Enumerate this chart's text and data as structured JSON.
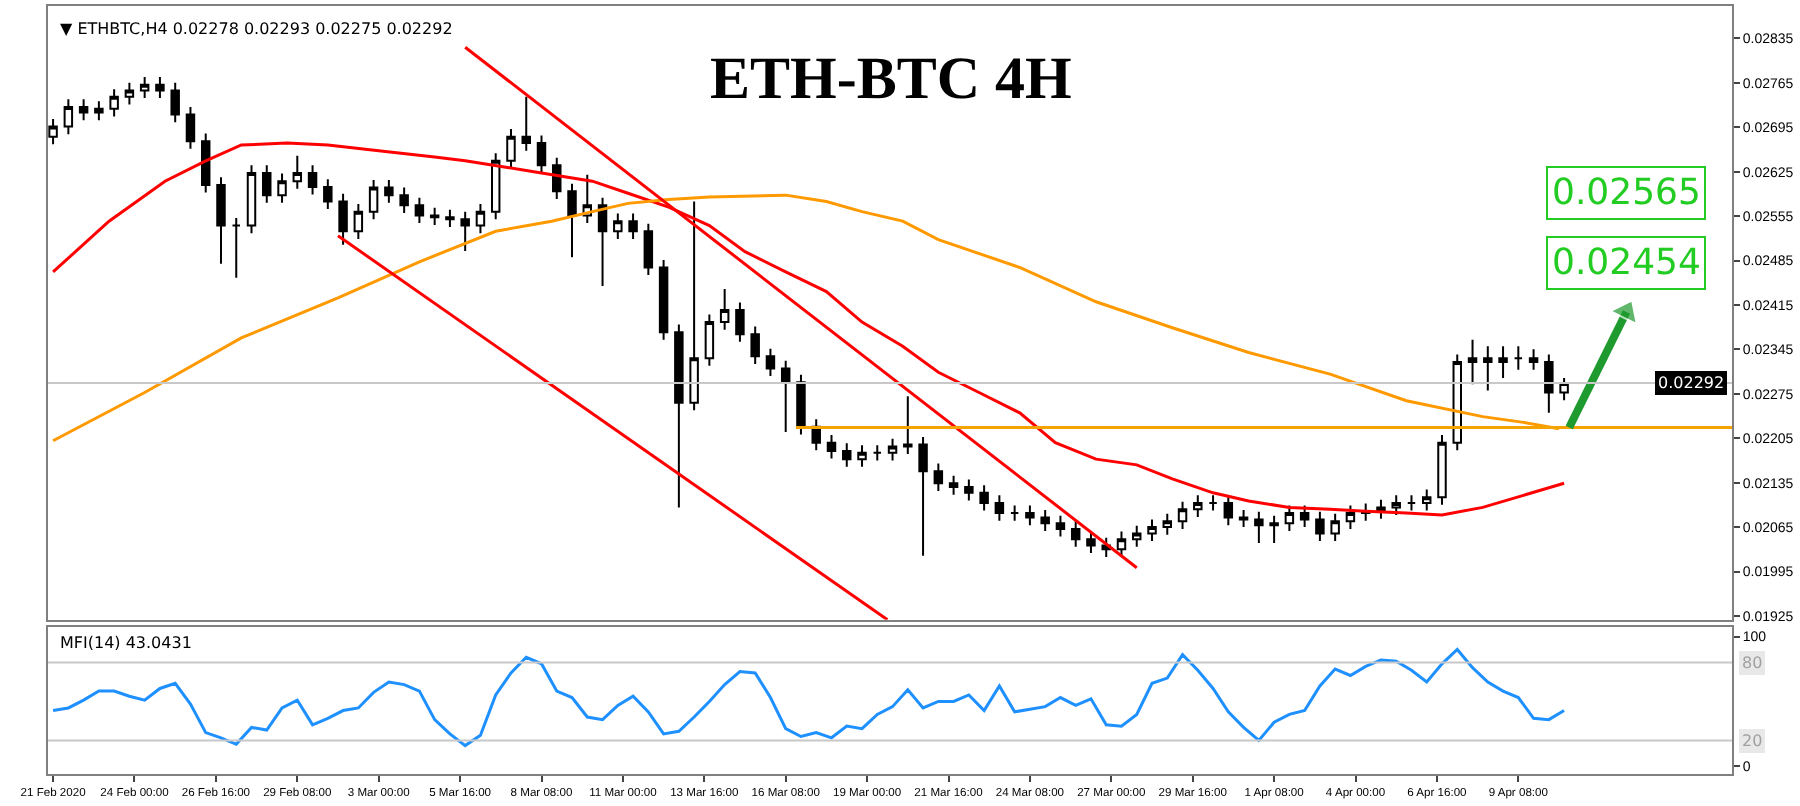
{
  "chart_data": [
    {
      "type": "candlestick",
      "title": "ETH-BTC 4H",
      "color": "#000000",
      "annotations": [
        "▼ ETHBTC,H4 0.02278 0.02293 0.02275 0.02292",
        "0.02565",
        "0.02454"
      ],
      "x": [
        "2020-02-21T08:00",
        "2020-02-21T20:00",
        "2020-02-22T08:00",
        "2020-02-22T20:00",
        "2020-02-23T08:00",
        "2020-02-23T20:00",
        "2020-02-24T08:00",
        "2020-02-24T20:00",
        "2020-02-25T08:00",
        "2020-02-25T20:00",
        "2020-02-26T08:00",
        "2020-02-26T20:00",
        "2020-02-27T08:00",
        "2020-02-27T20:00",
        "2020-02-28T08:00",
        "2020-02-28T20:00",
        "2020-02-29T08:00",
        "2020-02-29T20:00",
        "2020-03-01T08:00",
        "2020-03-01T20:00",
        "2020-03-02T08:00",
        "2020-03-02T20:00",
        "2020-03-03T08:00",
        "2020-03-03T20:00",
        "2020-03-04T08:00",
        "2020-03-04T20:00",
        "2020-03-05T08:00",
        "2020-03-05T20:00",
        "2020-03-06T08:00",
        "2020-03-06T20:00",
        "2020-03-07T08:00",
        "2020-03-07T20:00",
        "2020-03-08T08:00",
        "2020-03-08T20:00",
        "2020-03-09T08:00",
        "2020-03-09T20:00",
        "2020-03-10T08:00",
        "2020-03-10T20:00",
        "2020-03-11T08:00",
        "2020-03-11T20:00",
        "2020-03-12T08:00",
        "2020-03-12T20:00",
        "2020-03-13T08:00",
        "2020-03-13T20:00",
        "2020-03-14T08:00",
        "2020-03-14T20:00",
        "2020-03-15T08:00",
        "2020-03-15T20:00",
        "2020-03-16T08:00",
        "2020-03-16T20:00",
        "2020-03-17T08:00",
        "2020-03-17T20:00",
        "2020-03-18T08:00",
        "2020-03-18T20:00",
        "2020-03-19T08:00",
        "2020-03-19T20:00",
        "2020-03-20T08:00",
        "2020-03-20T20:00",
        "2020-03-21T08:00",
        "2020-03-21T20:00",
        "2020-03-22T08:00",
        "2020-03-22T20:00",
        "2020-03-23T08:00",
        "2020-03-23T20:00",
        "2020-03-24T08:00",
        "2020-03-24T20:00",
        "2020-03-25T08:00",
        "2020-03-25T20:00",
        "2020-03-26T08:00",
        "2020-03-26T20:00",
        "2020-03-27T08:00",
        "2020-03-27T20:00",
        "2020-03-28T08:00",
        "2020-03-28T20:00",
        "2020-03-29T08:00",
        "2020-03-29T20:00",
        "2020-03-30T08:00",
        "2020-03-30T20:00",
        "2020-03-31T08:00",
        "2020-03-31T20:00",
        "2020-04-01T08:00",
        "2020-04-01T20:00",
        "2020-04-02T08:00",
        "2020-04-02T20:00",
        "2020-04-03T08:00",
        "2020-04-03T20:00",
        "2020-04-04T08:00",
        "2020-04-04T20:00",
        "2020-04-05T08:00",
        "2020-04-05T20:00",
        "2020-04-06T08:00",
        "2020-04-06T20:00",
        "2020-04-07T08:00",
        "2020-04-07T20:00",
        "2020-04-08T08:00",
        "2020-04-08T20:00",
        "2020-04-09T08:00",
        "2020-04-09T20:00",
        "2020-04-10T08:00",
        "2020-04-10T20:00"
      ],
      "ohlc": [
        [
          0.0268,
          0.02708,
          0.02668,
          0.02696
        ],
        [
          0.02696,
          0.02739,
          0.02684,
          0.02727
        ],
        [
          0.02727,
          0.02739,
          0.02706,
          0.02718
        ],
        [
          0.02718,
          0.02736,
          0.02706,
          0.02724
        ],
        [
          0.02724,
          0.02755,
          0.02712,
          0.02743
        ],
        [
          0.02743,
          0.02765,
          0.02731,
          0.02753
        ],
        [
          0.02753,
          0.02774,
          0.02741,
          0.02762
        ],
        [
          0.02762,
          0.02774,
          0.02741,
          0.02753
        ],
        [
          0.02753,
          0.02765,
          0.02703,
          0.02715
        ],
        [
          0.02715,
          0.02727,
          0.02661,
          0.02673
        ],
        [
          0.02673,
          0.02685,
          0.02592,
          0.02604
        ],
        [
          0.02604,
          0.02616,
          0.0248,
          0.0254
        ],
        [
          0.0254,
          0.02552,
          0.02458,
          0.0254
        ],
        [
          0.0254,
          0.02635,
          0.02528,
          0.02623
        ],
        [
          0.02623,
          0.02635,
          0.02576,
          0.02588
        ],
        [
          0.02588,
          0.02622,
          0.02576,
          0.0261
        ],
        [
          0.0261,
          0.0265,
          0.02598,
          0.02623
        ],
        [
          0.02623,
          0.02635,
          0.02589,
          0.02601
        ],
        [
          0.02601,
          0.02613,
          0.02566,
          0.02578
        ],
        [
          0.02578,
          0.0259,
          0.0251,
          0.02531
        ],
        [
          0.02531,
          0.02574,
          0.02519,
          0.02562
        ],
        [
          0.02562,
          0.02612,
          0.0255,
          0.026
        ],
        [
          0.026,
          0.02612,
          0.02576,
          0.02588
        ],
        [
          0.02588,
          0.026,
          0.0256,
          0.02572
        ],
        [
          0.02572,
          0.02584,
          0.02544,
          0.02556
        ],
        [
          0.02556,
          0.02568,
          0.02541,
          0.02553
        ],
        [
          0.02553,
          0.02565,
          0.02538,
          0.0255
        ],
        [
          0.0255,
          0.02562,
          0.025,
          0.0254
        ],
        [
          0.0254,
          0.02574,
          0.02528,
          0.02562
        ],
        [
          0.02562,
          0.02654,
          0.0255,
          0.02642
        ],
        [
          0.02642,
          0.02692,
          0.0263,
          0.0268
        ],
        [
          0.0268,
          0.02743,
          0.02658,
          0.0267
        ],
        [
          0.0267,
          0.02682,
          0.02623,
          0.02635
        ],
        [
          0.02635,
          0.02647,
          0.02582,
          0.02594
        ],
        [
          0.02594,
          0.02606,
          0.0249,
          0.02556
        ],
        [
          0.02556,
          0.0262,
          0.02544,
          0.02572
        ],
        [
          0.02572,
          0.02584,
          0.02445,
          0.02531
        ],
        [
          0.02531,
          0.02559,
          0.02519,
          0.02547
        ],
        [
          0.02547,
          0.02559,
          0.02519,
          0.02531
        ],
        [
          0.02531,
          0.02543,
          0.02462,
          0.02474
        ],
        [
          0.02474,
          0.02486,
          0.0236,
          0.02372
        ],
        [
          0.02372,
          0.02384,
          0.02096,
          0.02261
        ],
        [
          0.02261,
          0.02578,
          0.02249,
          0.02331
        ],
        [
          0.02331,
          0.024,
          0.02319,
          0.02388
        ],
        [
          0.02388,
          0.0244,
          0.02376,
          0.02407
        ],
        [
          0.02407,
          0.02419,
          0.02357,
          0.02369
        ],
        [
          0.02369,
          0.02381,
          0.02322,
          0.02334
        ],
        [
          0.02334,
          0.02346,
          0.02303,
          0.02315
        ],
        [
          0.02315,
          0.02327,
          0.02215,
          0.02293
        ],
        [
          0.02293,
          0.02305,
          0.02211,
          0.02223
        ],
        [
          0.02223,
          0.02235,
          0.02186,
          0.02198
        ],
        [
          0.02198,
          0.0221,
          0.02173,
          0.02185
        ],
        [
          0.02185,
          0.02197,
          0.0216,
          0.02172
        ],
        [
          0.02172,
          0.02194,
          0.0216,
          0.02182
        ],
        [
          0.02182,
          0.02194,
          0.0217,
          0.02182
        ],
        [
          0.02182,
          0.02204,
          0.0217,
          0.02192
        ],
        [
          0.02192,
          0.02271,
          0.0218,
          0.02195
        ],
        [
          0.02195,
          0.02207,
          0.0202,
          0.02153
        ],
        [
          0.02153,
          0.02165,
          0.02122,
          0.02134
        ],
        [
          0.02134,
          0.02146,
          0.02116,
          0.02128
        ],
        [
          0.02128,
          0.0214,
          0.02107,
          0.02119
        ],
        [
          0.02119,
          0.02131,
          0.02091,
          0.02103
        ],
        [
          0.02103,
          0.02115,
          0.02075,
          0.02087
        ],
        [
          0.02087,
          0.02099,
          0.02075,
          0.02087
        ],
        [
          0.02087,
          0.02099,
          0.02068,
          0.0208
        ],
        [
          0.0208,
          0.02092,
          0.02059,
          0.02071
        ],
        [
          0.02071,
          0.02083,
          0.0205,
          0.02062
        ],
        [
          0.02062,
          0.02074,
          0.02034,
          0.02046
        ],
        [
          0.02046,
          0.02058,
          0.02024,
          0.02036
        ],
        [
          0.02036,
          0.02048,
          0.02018,
          0.0203
        ],
        [
          0.0203,
          0.02058,
          0.02018,
          0.02046
        ],
        [
          0.02046,
          0.02067,
          0.02034,
          0.02055
        ],
        [
          0.02055,
          0.02077,
          0.02043,
          0.02065
        ],
        [
          0.02065,
          0.02086,
          0.02053,
          0.02074
        ],
        [
          0.02074,
          0.02105,
          0.02062,
          0.02093
        ],
        [
          0.02093,
          0.02115,
          0.02081,
          0.02103
        ],
        [
          0.02103,
          0.02115,
          0.02091,
          0.02103
        ],
        [
          0.02103,
          0.02115,
          0.02068,
          0.0208
        ],
        [
          0.0208,
          0.02092,
          0.02065,
          0.02077
        ],
        [
          0.02077,
          0.02089,
          0.0204,
          0.02068
        ],
        [
          0.02068,
          0.02083,
          0.0204,
          0.02071
        ],
        [
          0.02071,
          0.02099,
          0.02059,
          0.02087
        ],
        [
          0.02087,
          0.02099,
          0.02065,
          0.02077
        ],
        [
          0.02077,
          0.02089,
          0.02043,
          0.02055
        ],
        [
          0.02055,
          0.02086,
          0.02043,
          0.02074
        ],
        [
          0.02074,
          0.02099,
          0.02062,
          0.02087
        ],
        [
          0.02087,
          0.02102,
          0.02075,
          0.0209
        ],
        [
          0.0209,
          0.02108,
          0.02078,
          0.02096
        ],
        [
          0.02096,
          0.02115,
          0.02084,
          0.02103
        ],
        [
          0.02103,
          0.02115,
          0.02091,
          0.02103
        ],
        [
          0.02103,
          0.02124,
          0.02091,
          0.02112
        ],
        [
          0.02112,
          0.0221,
          0.021,
          0.02198
        ],
        [
          0.02198,
          0.02337,
          0.02186,
          0.02325
        ],
        [
          0.02325,
          0.0236,
          0.0229,
          0.02331
        ],
        [
          0.02331,
          0.0235,
          0.0228,
          0.02325
        ],
        [
          0.02325,
          0.0235,
          0.023,
          0.02331
        ],
        [
          0.02331,
          0.0235,
          0.02313,
          0.02331
        ],
        [
          0.02331,
          0.02345,
          0.02313,
          0.02325
        ],
        [
          0.02325,
          0.02337,
          0.02245,
          0.02277
        ],
        [
          0.02277,
          0.023,
          0.02265,
          0.02292
        ]
      ],
      "series": [
        {
          "type": "line",
          "color": "#ff0000",
          "x": [
            "2020-02-21T08:00",
            "2020-02-23T04:00",
            "2020-02-25T00:00",
            "2020-02-26T08:00",
            "2020-02-27T12:00",
            "2020-02-29T00:00",
            "2020-03-01T08:00",
            "2020-03-03T00:00",
            "2020-03-04T20:00",
            "2020-03-05T20:00",
            "2020-03-07T04:00",
            "2020-03-08T08:00",
            "2020-03-10T00:00",
            "2020-03-11T04:00",
            "2020-03-12T12:00",
            "2020-03-13T20:00",
            "2020-03-15T00:00",
            "2020-03-16T08:00",
            "2020-03-17T16:00",
            "2020-03-18T20:00",
            "2020-03-20T04:00",
            "2020-03-21T08:00",
            "2020-03-22T16:00",
            "2020-03-24T00:00",
            "2020-03-25T04:00",
            "2020-03-26T12:00",
            "2020-03-27T20:00",
            "2020-03-29T00:00",
            "2020-03-30T08:00",
            "2020-03-31T12:00",
            "2020-04-01T20:00",
            "2020-04-03T04:00",
            "2020-04-04T08:00",
            "2020-04-05T16:00",
            "2020-04-06T20:00",
            "2020-04-08T04:00",
            "2020-04-09T12:00",
            "2020-04-10T20:00"
          ],
          "values": [
            0.02467,
            0.02547,
            0.0261,
            0.02642,
            0.02667,
            0.0267,
            0.02667,
            0.02658,
            0.02648,
            0.02642,
            0.02632,
            0.02623,
            0.0261,
            0.02591,
            0.02569,
            0.0254,
            0.02499,
            0.02467,
            0.02436,
            0.02388,
            0.0235,
            0.02309,
            0.02277,
            0.02245,
            0.02198,
            0.02172,
            0.02163,
            0.02141,
            0.02119,
            0.02106,
            0.02096,
            0.02093,
            0.0209,
            0.02087,
            0.02084,
            0.02096,
            0.02115,
            0.02134
          ]
        },
        {
          "type": "line",
          "color": "#ff9900",
          "x": [
            "2020-02-21T08:00",
            "2020-02-24T08:00",
            "2020-02-27T12:00",
            "2020-03-01T16:00",
            "2020-03-04T08:00",
            "2020-03-06T20:00",
            "2020-03-08T16:00",
            "2020-03-10T00:00",
            "2020-03-11T04:00",
            "2020-03-12T12:00",
            "2020-03-13T20:00",
            "2020-03-16T08:00",
            "2020-03-17T16:00",
            "2020-03-18T20:00",
            "2020-03-20T04:00",
            "2020-03-21T08:00",
            "2020-03-24T00:00",
            "2020-03-26T12:00",
            "2020-03-29T00:00",
            "2020-03-31T12:00",
            "2020-04-03T04:00",
            "2020-04-05T16:00",
            "2020-04-08T04:00",
            "2020-04-09T12:00",
            "2020-04-10T16:00"
          ],
          "values": [
            0.02201,
            0.02277,
            0.02363,
            0.02426,
            0.02483,
            0.02531,
            0.02547,
            0.02562,
            0.02575,
            0.02581,
            0.02585,
            0.02588,
            0.02578,
            0.02562,
            0.02547,
            0.02518,
            0.02474,
            0.0242,
            0.02379,
            0.0234,
            0.02306,
            0.02264,
            0.02239,
            0.0223,
            0.0222
          ]
        },
        {
          "type": "line",
          "color": "#ff0000",
          "x": [
            "2020-03-05T20:00",
            "2020-03-27T20:00"
          ],
          "values": [
            0.02821,
            0.02001
          ]
        },
        {
          "type": "line",
          "color": "#ff0000",
          "x": [
            "2020-03-01T16:00",
            "2020-03-19T16:00"
          ],
          "values": [
            0.02524,
            0.01919
          ]
        },
        {
          "type": "line",
          "color": "#f5a300",
          "x": [
            "2020-03-16T16:00",
            "2020-04-16T08:00"
          ],
          "values": [
            0.02222,
            0.02222
          ]
        },
        {
          "type": "line",
          "color": "#1e9a2e",
          "marker": "triangle",
          "x": [
            "2020-04-11T00:00",
            "2020-04-12T21:00"
          ],
          "values": [
            0.02222,
            0.02404
          ]
        }
      ],
      "ref_lines": [
        {
          "axis": "y",
          "value": 0.02292,
          "label": "0.02292",
          "color": "#c8c8c8"
        }
      ],
      "xlim": [
        "2020-02-21T04:00",
        "2020-04-16T08:00"
      ],
      "ylim": [
        0.01919,
        0.02886
      ],
      "yticks": [
        0.02835,
        0.02765,
        0.02695,
        0.02625,
        0.02555,
        0.02485,
        0.02415,
        0.02345,
        0.02275,
        0.02205,
        0.02135,
        0.02065,
        0.01995,
        0.01925
      ],
      "tick_labels": "y"
    },
    {
      "type": "line",
      "annotations": [
        "MFI(14) 43.0431"
      ],
      "x": [
        "2020-02-21T08:00",
        "2020-02-21T20:00",
        "2020-02-22T08:00",
        "2020-02-22T20:00",
        "2020-02-23T08:00",
        "2020-02-23T20:00",
        "2020-02-24T08:00",
        "2020-02-24T20:00",
        "2020-02-25T08:00",
        "2020-02-25T20:00",
        "2020-02-26T08:00",
        "2020-02-26T20:00",
        "2020-02-27T08:00",
        "2020-02-27T20:00",
        "2020-02-28T08:00",
        "2020-02-28T20:00",
        "2020-02-29T08:00",
        "2020-02-29T20:00",
        "2020-03-01T08:00",
        "2020-03-01T20:00",
        "2020-03-02T08:00",
        "2020-03-02T20:00",
        "2020-03-03T08:00",
        "2020-03-03T20:00",
        "2020-03-04T08:00",
        "2020-03-04T20:00",
        "2020-03-05T08:00",
        "2020-03-05T20:00",
        "2020-03-06T08:00",
        "2020-03-06T20:00",
        "2020-03-07T08:00",
        "2020-03-07T20:00",
        "2020-03-08T08:00",
        "2020-03-08T20:00",
        "2020-03-09T08:00",
        "2020-03-09T20:00",
        "2020-03-10T08:00",
        "2020-03-10T20:00",
        "2020-03-11T08:00",
        "2020-03-11T20:00",
        "2020-03-12T08:00",
        "2020-03-12T20:00",
        "2020-03-13T08:00",
        "2020-03-13T20:00",
        "2020-03-14T08:00",
        "2020-03-14T20:00",
        "2020-03-15T08:00",
        "2020-03-15T20:00",
        "2020-03-16T08:00",
        "2020-03-16T20:00",
        "2020-03-17T08:00",
        "2020-03-17T20:00",
        "2020-03-18T08:00",
        "2020-03-18T20:00",
        "2020-03-19T08:00",
        "2020-03-19T20:00",
        "2020-03-20T08:00",
        "2020-03-20T20:00",
        "2020-03-21T08:00",
        "2020-03-21T20:00",
        "2020-03-22T08:00",
        "2020-03-22T20:00",
        "2020-03-23T08:00",
        "2020-03-23T20:00",
        "2020-03-24T08:00",
        "2020-03-24T20:00",
        "2020-03-25T08:00",
        "2020-03-25T20:00",
        "2020-03-26T08:00",
        "2020-03-26T20:00",
        "2020-03-27T08:00",
        "2020-03-27T20:00",
        "2020-03-28T08:00",
        "2020-03-28T20:00",
        "2020-03-29T08:00",
        "2020-03-29T20:00",
        "2020-03-30T08:00",
        "2020-03-30T20:00",
        "2020-03-31T08:00",
        "2020-03-31T20:00",
        "2020-04-01T08:00",
        "2020-04-01T20:00",
        "2020-04-02T08:00",
        "2020-04-02T20:00",
        "2020-04-03T08:00",
        "2020-04-03T20:00",
        "2020-04-04T08:00",
        "2020-04-04T20:00",
        "2020-04-05T08:00",
        "2020-04-05T20:00",
        "2020-04-06T08:00",
        "2020-04-06T20:00",
        "2020-04-07T08:00",
        "2020-04-07T20:00",
        "2020-04-08T08:00",
        "2020-04-08T20:00",
        "2020-04-09T08:00",
        "2020-04-09T20:00",
        "2020-04-10T08:00",
        "2020-04-10T20:00"
      ],
      "series": [
        {
          "color": "#1e90ff",
          "values": [
            43,
            45,
            51,
            58,
            58,
            54,
            51,
            60,
            64,
            48,
            26,
            22,
            17,
            30,
            28,
            45,
            51,
            32,
            37,
            43,
            45,
            57,
            65,
            63,
            58,
            36,
            25,
            16,
            24,
            55,
            72,
            84,
            79,
            58,
            53,
            38,
            36,
            47,
            54,
            42,
            25,
            27,
            38,
            50,
            63,
            73,
            72,
            53,
            29,
            23,
            26,
            22,
            31,
            29,
            40,
            46,
            59,
            45,
            50,
            50,
            55,
            43,
            62,
            42,
            44,
            46,
            53,
            47,
            52,
            32,
            31,
            40,
            64,
            68,
            86,
            74,
            60,
            42,
            30,
            20,
            34,
            40,
            43,
            62,
            75,
            70,
            77,
            82,
            81,
            74,
            65,
            79,
            90,
            76,
            65,
            58,
            53,
            37,
            36,
            43
          ]
        }
      ],
      "ref_lines": [
        {
          "axis": "y",
          "value": 80,
          "label": "80",
          "color": "#c8c8c8"
        },
        {
          "axis": "y",
          "value": 20,
          "label": "20",
          "color": "#c8c8c8"
        }
      ],
      "xlim": [
        "2020-02-21T04:00",
        "2020-04-16T08:00"
      ],
      "ylim": [
        -6,
        107
      ],
      "yticks": [
        0,
        100
      ],
      "xticks": [
        {
          "value": "2020-02-21T08:00",
          "label": "21 Feb 2020"
        },
        {
          "value": "2020-02-24T00:00",
          "label": "24 Feb 00:00"
        },
        {
          "value": "2020-02-26T16:00",
          "label": "26 Feb 16:00"
        },
        {
          "value": "2020-02-29T08:00",
          "label": "29 Feb 08:00"
        },
        {
          "value": "2020-03-03T00:00",
          "label": "3 Mar 00:00"
        },
        {
          "value": "2020-03-05T16:00",
          "label": "5 Mar 16:00"
        },
        {
          "value": "2020-03-08T08:00",
          "label": "8 Mar 08:00"
        },
        {
          "value": "2020-03-11T00:00",
          "label": "11 Mar 00:00"
        },
        {
          "value": "2020-03-13T16:00",
          "label": "13 Mar 16:00"
        },
        {
          "value": "2020-03-16T08:00",
          "label": "16 Mar 08:00"
        },
        {
          "value": "2020-03-19T00:00",
          "label": "19 Mar 00:00"
        },
        {
          "value": "2020-03-21T16:00",
          "label": "21 Mar 16:00"
        },
        {
          "value": "2020-03-24T08:00",
          "label": "24 Mar 08:00"
        },
        {
          "value": "2020-03-27T00:00",
          "label": "27 Mar 00:00"
        },
        {
          "value": "2020-03-29T16:00",
          "label": "29 Mar 16:00"
        },
        {
          "value": "2020-04-01T08:00",
          "label": "1 Apr 08:00"
        },
        {
          "value": "2020-04-04T00:00",
          "label": "4 Apr 00:00"
        },
        {
          "value": "2020-04-06T16:00",
          "label": "6 Apr 16:00"
        },
        {
          "value": "2020-04-09T08:00",
          "label": "9 Apr 08:00"
        }
      ]
    }
  ]
}
